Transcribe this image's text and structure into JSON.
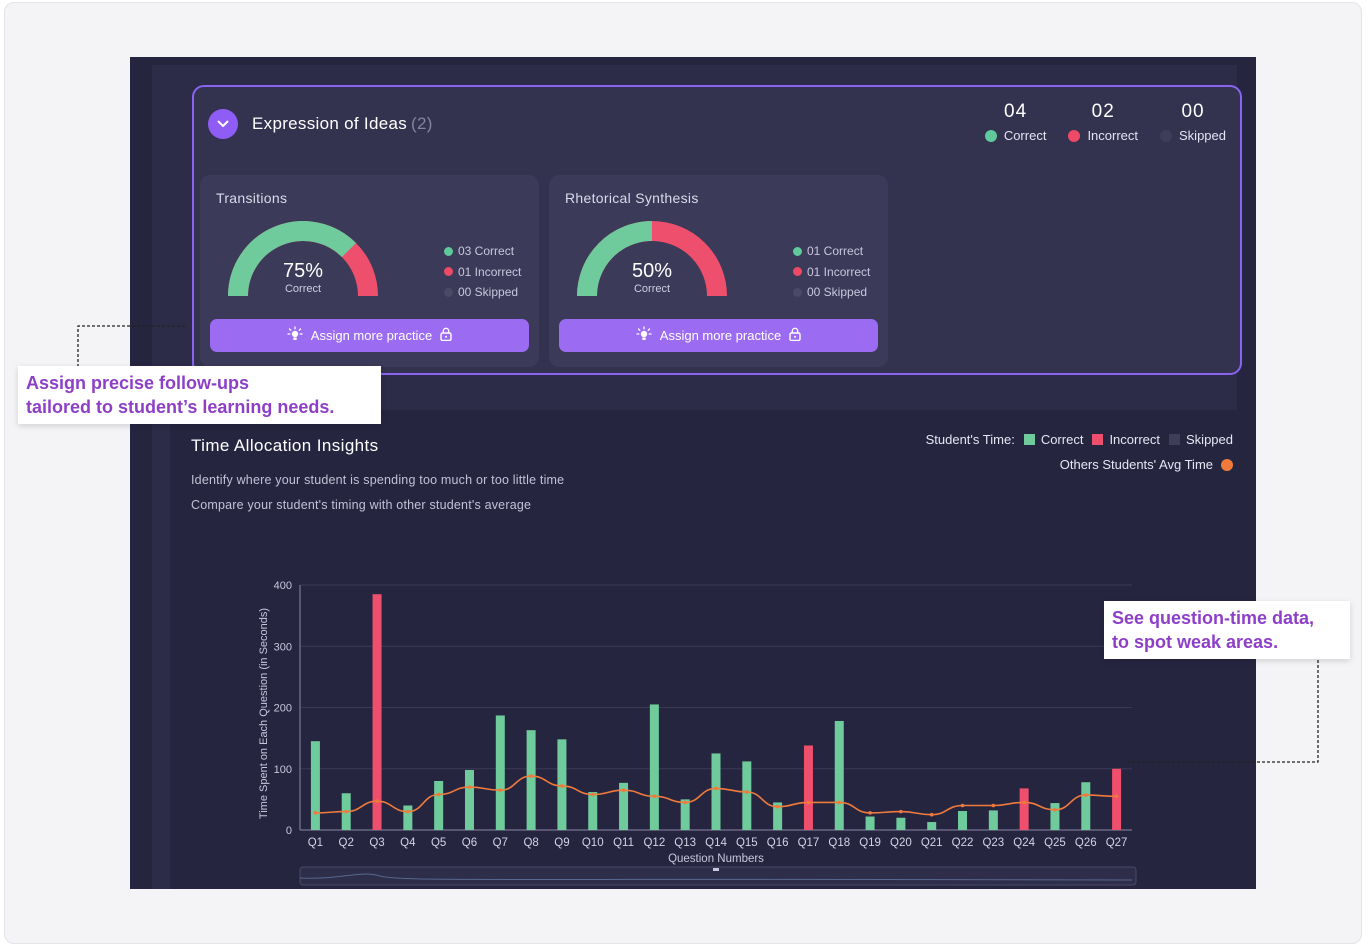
{
  "section": {
    "title": "Expression of Ideas",
    "count": "(2)",
    "stats": [
      {
        "num": "04",
        "label": "Correct",
        "color": "#5fc99a"
      },
      {
        "num": "02",
        "label": "Incorrect",
        "color": "#ec4a66"
      },
      {
        "num": "00",
        "label": "Skipped",
        "color": "#3e3d5a"
      }
    ]
  },
  "subcards": [
    {
      "title": "Transitions",
      "percent": "75%",
      "percent_value": 0.75,
      "percent_label": "Correct",
      "correct": "03 Correct",
      "incorrect": "01 Incorrect",
      "skipped": "00 Skipped",
      "button": "Assign more practice"
    },
    {
      "title": "Rhetorical Synthesis",
      "percent": "50%",
      "percent_value": 0.5,
      "percent_label": "Correct",
      "correct": "01 Correct",
      "incorrect": "01 Incorrect",
      "skipped": "00 Skipped",
      "button": "Assign more practice"
    }
  ],
  "time_insights": {
    "title": "Time Allocation Insights",
    "subtitle1": "Identify where your student is spending too much or too little time",
    "subtitle2": "Compare your student's timing with other student's average",
    "legend_prefix": "Student's Time:",
    "legend_correct": "Correct",
    "legend_incorrect": "Incorrect",
    "legend_skipped": "Skipped",
    "legend_avg": "Others Students' Avg Time"
  },
  "colors": {
    "correct": "#6fcb9b",
    "incorrect": "#ee4f6c",
    "skipped": "#3e3d5a",
    "avg": "#f07a3c",
    "accent": "#8f5cf5"
  },
  "callouts": {
    "left_line1": "Assign precise follow-ups",
    "left_line2": "tailored to student’s learning needs.",
    "right_line1": "See question-time data,",
    "right_line2": "to spot weak areas."
  },
  "chart_data": {
    "type": "bar",
    "xlabel": "Question Numbers",
    "ylabel": "Time Spent on Each Question (in Seconds)",
    "ylim": [
      0,
      400
    ],
    "yticks": [
      0,
      100,
      200,
      300,
      400
    ],
    "categories": [
      "Q1",
      "Q2",
      "Q3",
      "Q4",
      "Q5",
      "Q6",
      "Q7",
      "Q8",
      "Q9",
      "Q10",
      "Q11",
      "Q12",
      "Q13",
      "Q14",
      "Q15",
      "Q16",
      "Q17",
      "Q18",
      "Q19",
      "Q20",
      "Q21",
      "Q22",
      "Q23",
      "Q24",
      "Q25",
      "Q26",
      "Q27"
    ],
    "series": [
      {
        "name": "Correct",
        "values": [
          145,
          60,
          0,
          40,
          80,
          98,
          187,
          163,
          148,
          62,
          77,
          205,
          50,
          125,
          112,
          45,
          0,
          178,
          22,
          20,
          13,
          31,
          32,
          0,
          44,
          78,
          0
        ]
      },
      {
        "name": "Incorrect",
        "values": [
          0,
          0,
          385,
          0,
          0,
          0,
          0,
          0,
          0,
          0,
          0,
          0,
          0,
          0,
          0,
          0,
          138,
          0,
          0,
          0,
          0,
          0,
          0,
          68,
          0,
          0,
          100
        ]
      },
      {
        "name": "Others Students' Avg Time",
        "type": "line",
        "values": [
          28,
          30,
          47,
          30,
          58,
          70,
          65,
          88,
          72,
          58,
          65,
          55,
          45,
          68,
          62,
          38,
          45,
          45,
          28,
          30,
          25,
          40,
          40,
          45,
          33,
          57,
          55
        ]
      }
    ]
  }
}
